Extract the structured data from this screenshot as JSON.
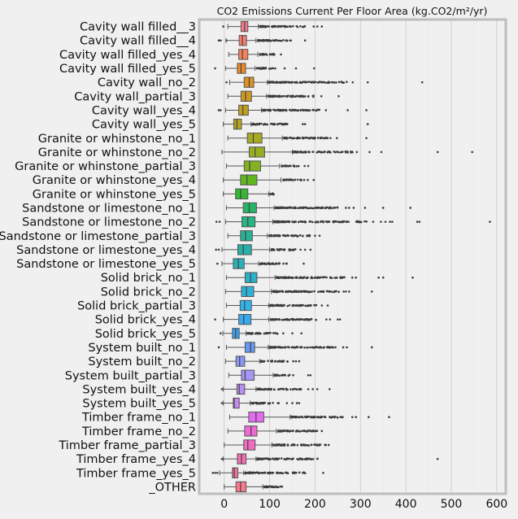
{
  "chart_data": {
    "type": "boxplot",
    "title": "CO2 Emissions Current Per Floor Area (kg.CO2/m²/yr)",
    "xlabel": "",
    "ylabel": "",
    "xlim": [
      -55,
      620
    ],
    "xticks": [
      0,
      100,
      200,
      300,
      400,
      500,
      600
    ],
    "grid": true,
    "orientation": "horizontal",
    "series": [
      {
        "name": "Cavity wall filled__3",
        "color": "#f7798c",
        "q1": 37,
        "median": 45,
        "q3": 52,
        "whisker_low": 8,
        "whisker_high": 75,
        "outliers_from": 78,
        "outliers_to": 185,
        "sparse": [
          197,
          205,
          215,
          -2
        ]
      },
      {
        "name": "Cavity wall filled__4",
        "color": "#f77f72",
        "q1": 33,
        "median": 40,
        "q3": 49,
        "whisker_low": 4,
        "whisker_high": 70,
        "outliers_from": 74,
        "outliers_to": 150,
        "sparse": [
          -12,
          -8,
          178,
          5
        ]
      },
      {
        "name": "Cavity wall filled_yes_4",
        "color": "#f5845a",
        "q1": 32,
        "median": 40,
        "q3": 52,
        "whisker_low": 10,
        "whisker_high": 74,
        "outliers_from": 78,
        "outliers_to": 115,
        "sparse": [
          125
        ]
      },
      {
        "name": "Cavity wall filled_yes_5",
        "color": "#ee8a2a",
        "q1": 29,
        "median": 37,
        "q3": 47,
        "whisker_low": 3,
        "whisker_high": 68,
        "outliers_from": 72,
        "outliers_to": 115,
        "sparse": [
          -20,
          158,
          198,
          133
        ]
      },
      {
        "name": "Cavity wall_no_2",
        "color": "#dc9223",
        "q1": 44,
        "median": 55,
        "q3": 65,
        "whisker_low": 12,
        "whisker_high": 95,
        "outliers_from": 98,
        "outliers_to": 272,
        "sparse": [
          283,
          316,
          436,
          5
        ]
      },
      {
        "name": "Cavity wall_partial_3",
        "color": "#ce9923",
        "q1": 37,
        "median": 47,
        "q3": 60,
        "whisker_low": 8,
        "whisker_high": 93,
        "outliers_from": 96,
        "outliers_to": 200,
        "sparse": [
          252,
          214
        ]
      },
      {
        "name": "Cavity wall_yes_4",
        "color": "#c19e23",
        "q1": 32,
        "median": 41,
        "q3": 53,
        "whisker_low": 3,
        "whisker_high": 82,
        "outliers_from": 85,
        "outliers_to": 212,
        "sparse": [
          -12,
          -8,
          272,
          313,
          224
        ]
      },
      {
        "name": "Cavity wall_yes_5",
        "color": "#b4a323",
        "q1": 21,
        "median": 28,
        "q3": 38,
        "whisker_low": -2,
        "whisker_high": 59,
        "outliers_from": 62,
        "outliers_to": 140,
        "sparse": [
          173,
          178,
          316
        ]
      },
      {
        "name": "Granite or whinstone_no_1",
        "color": "#a7a923",
        "q1": 51,
        "median": 64,
        "q3": 83,
        "whisker_low": 8,
        "whisker_high": 128,
        "outliers_from": 131,
        "outliers_to": 230,
        "sparse": [
          234,
          248,
          313
        ]
      },
      {
        "name": "Granite or whinstone_no_2",
        "color": "#98ad23",
        "q1": 55,
        "median": 68,
        "q3": 89,
        "whisker_low": -5,
        "whisker_high": 150,
        "outliers_from": 153,
        "outliers_to": 285,
        "sparse": [
          292,
          320,
          346,
          470,
          546
        ]
      },
      {
        "name": "Granite or whinstone_partial_3",
        "color": "#84b123",
        "q1": 44,
        "median": 56,
        "q3": 80,
        "whisker_low": 5,
        "whisker_high": 122,
        "outliers_from": 126,
        "outliers_to": 165,
        "sparse": [
          177,
          185
        ]
      },
      {
        "name": "Granite or whinstone_yes_4",
        "color": "#62b623",
        "q1": 36,
        "median": 50,
        "q3": 72,
        "whisker_low": -2,
        "whisker_high": 125,
        "outliers_from": 129,
        "outliers_to": 170,
        "sparse": [
          176,
          184,
          197
        ]
      },
      {
        "name": "Granite or whinstone_yes_5",
        "color": "#33b734",
        "q1": 25,
        "median": 36,
        "q3": 52,
        "whisker_low": -2,
        "whisker_high": 98,
        "outliers_from": 101,
        "outliers_to": 115,
        "sparse": []
      },
      {
        "name": "Sandstone or limestone_no_1",
        "color": "#26b468",
        "q1": 42,
        "median": 55,
        "q3": 71,
        "whisker_low": 5,
        "whisker_high": 110,
        "outliers_from": 113,
        "outliers_to": 250,
        "sparse": [
          268,
          275,
          285,
          310,
          350,
          410
        ]
      },
      {
        "name": "Sandstone or limestone_no_2",
        "color": "#27b382",
        "q1": 39,
        "median": 52,
        "q3": 68,
        "whisker_low": 3,
        "whisker_high": 107,
        "outliers_from": 110,
        "outliers_to": 315,
        "sparse": [
          -17,
          -10,
          328,
          345,
          355,
          365,
          370,
          425,
          430,
          585
        ]
      },
      {
        "name": "Sandstone or limestone_partial_3",
        "color": "#28b196",
        "q1": 36,
        "median": 47,
        "q3": 62,
        "whisker_low": 8,
        "whisker_high": 95,
        "outliers_from": 99,
        "outliers_to": 190,
        "sparse": [
          200,
          210
        ]
      },
      {
        "name": "Sandstone or limestone_yes_4",
        "color": "#29b0a7",
        "q1": 30,
        "median": 42,
        "q3": 60,
        "whisker_low": -5,
        "whisker_high": 100,
        "outliers_from": 104,
        "outliers_to": 160,
        "sparse": [
          -18,
          -12,
          168,
          178,
          190
        ]
      },
      {
        "name": "Sandstone or limestone_yes_5",
        "color": "#2ab0b7",
        "q1": 20,
        "median": 31,
        "q3": 44,
        "whisker_low": -5,
        "whisker_high": 76,
        "outliers_from": 79,
        "outliers_to": 138,
        "sparse": [
          -15,
          175
        ]
      },
      {
        "name": "Solid brick_no_1",
        "color": "#2bb1c8",
        "q1": 46,
        "median": 58,
        "q3": 72,
        "whisker_low": 5,
        "whisker_high": 112,
        "outliers_from": 115,
        "outliers_to": 270,
        "sparse": [
          290,
          340,
          350,
          415,
          282
        ]
      },
      {
        "name": "Solid brick_no_2",
        "color": "#2eb2da",
        "q1": 38,
        "median": 49,
        "q3": 65,
        "whisker_low": 3,
        "whisker_high": 104,
        "outliers_from": 107,
        "outliers_to": 255,
        "sparse": [
          263,
          268,
          325,
          275
        ]
      },
      {
        "name": "Solid brick_partial_3",
        "color": "#31b2ec",
        "q1": 35,
        "median": 45,
        "q3": 60,
        "whisker_low": 5,
        "whisker_high": 98,
        "outliers_from": 101,
        "outliers_to": 208,
        "sparse": [
          215,
          228
        ]
      },
      {
        "name": "Solid brick_yes_4",
        "color": "#37a9ee",
        "q1": 32,
        "median": 43,
        "q3": 59,
        "whisker_low": -2,
        "whisker_high": 98,
        "outliers_from": 102,
        "outliers_to": 205,
        "sparse": [
          -20,
          225,
          233,
          250,
          255
        ]
      },
      {
        "name": "Solid brick_yes_5",
        "color": "#3aa0ee",
        "q1": 18,
        "median": 25,
        "q3": 33,
        "whisker_low": -3,
        "whisker_high": 48,
        "outliers_from": 51,
        "outliers_to": 120,
        "sparse": [
          -8,
          130,
          150,
          170
        ]
      },
      {
        "name": "System built_no_1",
        "color": "#6a97f4",
        "q1": 46,
        "median": 58,
        "q3": 67,
        "whisker_low": 5,
        "whisker_high": 97,
        "outliers_from": 100,
        "outliers_to": 240,
        "sparse": [
          -12,
          245,
          262,
          270,
          325
        ]
      },
      {
        "name": "System built_no_2",
        "color": "#8c96f5",
        "q1": 26,
        "median": 34,
        "q3": 45,
        "whisker_low": 3,
        "whisker_high": 78,
        "outliers_from": 81,
        "outliers_to": 145,
        "sparse": [
          152,
          158,
          165
        ]
      },
      {
        "name": "System built_partial_3",
        "color": "#a595f4",
        "q1": 38,
        "median": 46,
        "q3": 66,
        "whisker_low": 10,
        "whisker_high": 108,
        "outliers_from": 111,
        "outliers_to": 145,
        "sparse": [
          152,
          185,
          190
        ]
      },
      {
        "name": "System built_yes_4",
        "color": "#b78ff3",
        "q1": 28,
        "median": 33,
        "q3": 45,
        "whisker_low": -2,
        "whisker_high": 70,
        "outliers_from": 73,
        "outliers_to": 170,
        "sparse": [
          -5,
          185,
          195,
          205,
          232
        ]
      },
      {
        "name": "System built_yes_5",
        "color": "#c68af3",
        "q1": 20,
        "median": 22,
        "q3": 33,
        "whisker_low": -2,
        "whisker_high": 57,
        "outliers_from": 60,
        "outliers_to": 110,
        "sparse": [
          -5,
          118,
          120,
          138,
          150,
          160,
          165
        ]
      },
      {
        "name": "Timber frame_no_1",
        "color": "#e46cf1",
        "q1": 54,
        "median": 70,
        "q3": 87,
        "whisker_low": 12,
        "whisker_high": 145,
        "outliers_from": 148,
        "outliers_to": 262,
        "sparse": [
          282,
          290,
          318,
          363
        ]
      },
      {
        "name": "Timber frame_no_2",
        "color": "#ef6ad6",
        "q1": 45,
        "median": 59,
        "q3": 72,
        "whisker_low": 8,
        "whisker_high": 115,
        "outliers_from": 118,
        "outliers_to": 205,
        "sparse": [
          215
        ]
      },
      {
        "name": "Timber frame_partial_3",
        "color": "#f06cc0",
        "q1": 43,
        "median": 52,
        "q3": 68,
        "whisker_low": 0,
        "whisker_high": 105,
        "outliers_from": 108,
        "outliers_to": 225,
        "sparse": [
          230
        ]
      },
      {
        "name": "Timber frame_yes_4",
        "color": "#f36fae",
        "q1": 29,
        "median": 38,
        "q3": 48,
        "whisker_low": -2,
        "whisker_high": 70,
        "outliers_from": 73,
        "outliers_to": 220,
        "sparse": [
          -5,
          -3,
          470
        ]
      },
      {
        "name": "Timber frame_yes_5",
        "color": "#f5739a",
        "q1": 18,
        "median": 22,
        "q3": 30,
        "whisker_low": -10,
        "whisker_high": 43,
        "outliers_from": 46,
        "outliers_to": 180,
        "sparse": [
          -25,
          -20,
          -15,
          218
        ]
      },
      {
        "name": "_OTHER",
        "color": "#f7798c",
        "q1": 26,
        "median": 36,
        "q3": 48,
        "whisker_low": 0,
        "whisker_high": 85,
        "outliers_from": 88,
        "outliers_to": 130,
        "sparse": []
      }
    ]
  }
}
